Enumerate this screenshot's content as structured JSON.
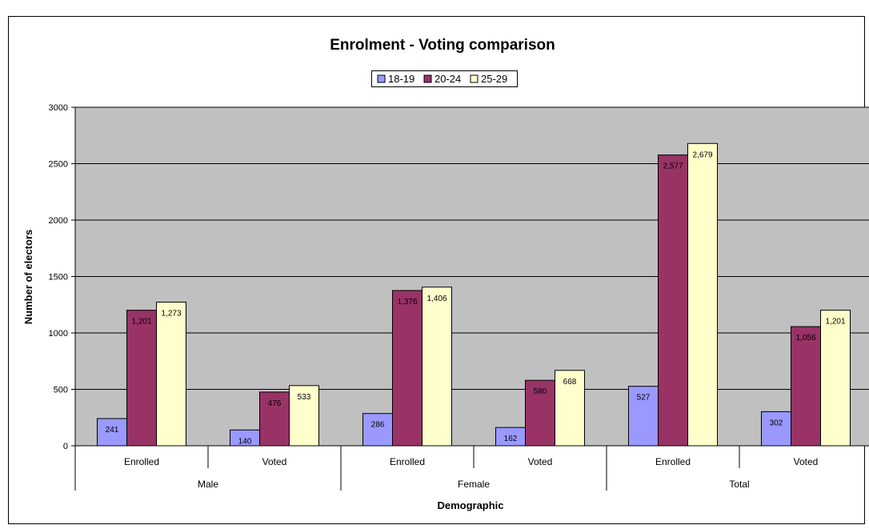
{
  "chart_data": {
    "type": "bar",
    "title": "Enrolment - Voting comparison",
    "xlabel": "Demographic",
    "ylabel": "Number of electors",
    "ylim": [
      0,
      3000
    ],
    "yticks": [
      0,
      500,
      1000,
      1500,
      2000,
      2500,
      3000
    ],
    "grid": true,
    "legend_position": "top",
    "groups": [
      {
        "label": "Male",
        "categories": [
          "Enrolled",
          "Voted"
        ]
      },
      {
        "label": "Female",
        "categories": [
          "Enrolled",
          "Voted"
        ]
      },
      {
        "label": "Total",
        "categories": [
          "Enrolled",
          "Voted"
        ]
      }
    ],
    "categories": [
      "Enrolled",
      "Voted",
      "Enrolled",
      "Voted",
      "Enrolled",
      "Voted"
    ],
    "series": [
      {
        "name": "18-19",
        "color": "#9999ff",
        "values": [
          241,
          140,
          286,
          162,
          527,
          302
        ],
        "labels": [
          "241",
          "140",
          "286",
          "162",
          "527",
          "302"
        ]
      },
      {
        "name": "20-24",
        "color": "#993366",
        "values": [
          1201,
          476,
          1376,
          580,
          2577,
          1056
        ],
        "labels": [
          "1,201",
          "476",
          "1,376",
          "580",
          "2,577",
          "1,056"
        ]
      },
      {
        "name": "25-29",
        "color": "#ffffcc",
        "values": [
          1273,
          533,
          1406,
          668,
          2679,
          1201
        ],
        "labels": [
          "1,273",
          "533",
          "1,406",
          "668",
          "2,679",
          "1,201"
        ]
      }
    ],
    "colors": {
      "plot_background": "#c0c0c0",
      "gridline": "#000000",
      "border": "#000000"
    }
  }
}
